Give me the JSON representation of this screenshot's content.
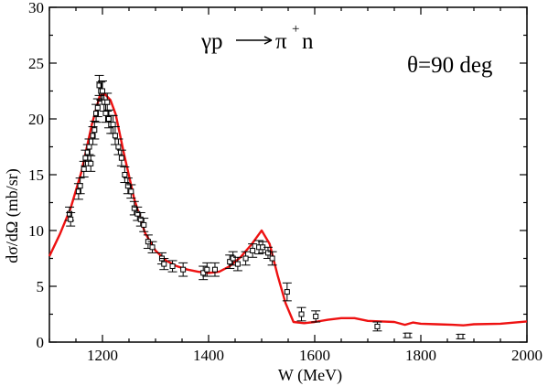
{
  "chart_data": {
    "type": "scatter",
    "title": "",
    "xlabel": "W (MeV)",
    "ylabel": "dσ/dΩ  (mb/sr)",
    "xlim": [
      1100,
      2000
    ],
    "ylim": [
      0,
      30
    ],
    "xticks": [
      1200,
      1400,
      1600,
      1800,
      2000
    ],
    "yticks": [
      0,
      5,
      10,
      15,
      20,
      25,
      30
    ],
    "grid": false,
    "legend": "none",
    "annotations": {
      "reaction": {
        "left": "γp",
        "right_base": "π",
        "right_sup": "+",
        "right_tail": "n"
      },
      "angle": "θ=90 deg"
    },
    "series": [
      {
        "kind": "line",
        "color": "#ee1111",
        "x": [
          1100,
          1120,
          1140,
          1160,
          1180,
          1195,
          1205,
          1215,
          1225,
          1240,
          1260,
          1280,
          1300,
          1320,
          1340,
          1360,
          1380,
          1400,
          1420,
          1440,
          1460,
          1480,
          1500,
          1515,
          1530,
          1545,
          1560,
          1580,
          1600,
          1625,
          1650,
          1675,
          1700,
          1725,
          1750,
          1770,
          1785,
          1800,
          1830,
          1860,
          1880,
          1900,
          1950,
          2000
        ],
        "y": [
          7.7,
          9.7,
          12.0,
          15.2,
          19.5,
          22.1,
          22.2,
          21.7,
          20.4,
          17.0,
          12.8,
          9.8,
          8.2,
          7.3,
          6.8,
          6.5,
          6.3,
          6.2,
          6.3,
          6.8,
          7.6,
          8.7,
          10.0,
          8.8,
          6.0,
          3.5,
          1.8,
          1.7,
          1.8,
          2.0,
          2.15,
          2.15,
          1.9,
          1.85,
          1.8,
          1.55,
          1.75,
          1.65,
          1.6,
          1.55,
          1.5,
          1.6,
          1.65,
          1.85
        ]
      },
      {
        "kind": "points",
        "marker": "open-square",
        "color": "#000000",
        "x": [
          1138,
          1140,
          1155,
          1158,
          1165,
          1168,
          1172,
          1175,
          1178,
          1182,
          1185,
          1188,
          1191,
          1194,
          1197,
          1200,
          1203,
          1206,
          1209,
          1212,
          1216,
          1220,
          1224,
          1230,
          1236,
          1242,
          1248,
          1254,
          1260,
          1266,
          1272,
          1278,
          1286,
          1294,
          1312,
          1316,
          1332,
          1352,
          1390,
          1397,
          1412,
          1440,
          1446,
          1455,
          1470,
          1483,
          1495,
          1502,
          1512,
          1520,
          1548,
          1575,
          1602,
          1718,
          1775,
          1875
        ],
        "y": [
          11.5,
          11.0,
          13.5,
          14.0,
          15.5,
          16.5,
          17.0,
          17.5,
          16.0,
          18.5,
          19.0,
          20.5,
          21.0,
          23.0,
          22.5,
          22.5,
          21.5,
          20.5,
          21.5,
          20.0,
          19.5,
          19.5,
          18.5,
          17.5,
          16.5,
          15.0,
          14.0,
          13.5,
          12.0,
          11.5,
          11.0,
          10.5,
          9.0,
          8.5,
          7.5,
          7.0,
          6.8,
          6.5,
          6.2,
          6.5,
          6.5,
          7.2,
          7.5,
          7.0,
          7.5,
          8.2,
          8.5,
          8.5,
          8.0,
          7.5,
          4.5,
          2.5,
          2.3,
          1.4,
          0.6,
          0.5
        ],
        "err": [
          0.6,
          0.6,
          0.7,
          0.7,
          0.7,
          0.7,
          0.7,
          0.7,
          0.7,
          0.8,
          0.8,
          0.8,
          0.8,
          0.9,
          0.8,
          0.9,
          0.8,
          0.8,
          0.8,
          0.8,
          0.8,
          0.8,
          0.8,
          0.7,
          0.7,
          0.7,
          0.7,
          0.6,
          0.6,
          0.6,
          0.6,
          0.6,
          0.6,
          0.5,
          0.5,
          0.5,
          0.5,
          0.6,
          0.6,
          0.6,
          0.6,
          0.6,
          0.6,
          0.6,
          0.6,
          0.6,
          0.6,
          0.5,
          0.5,
          0.6,
          0.8,
          0.6,
          0.5,
          0.4,
          0.2,
          0.2
        ]
      }
    ]
  }
}
